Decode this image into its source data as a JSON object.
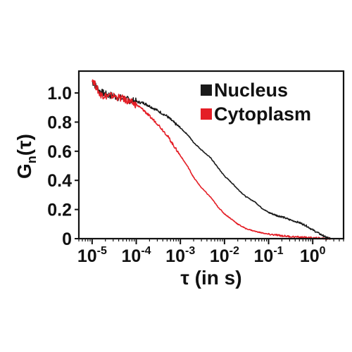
{
  "chart_data": {
    "type": "line",
    "xlabel": "τ (in s)",
    "ylabel": "Gn(τ)",
    "ylabel_main": "G",
    "ylabel_sub": "n",
    "ylabel_arg": "(τ)",
    "x_scale": "log",
    "xlim": [
      5e-06,
      5
    ],
    "ylim": [
      0,
      1.15
    ],
    "x_ticks": [
      {
        "base": "10",
        "exp": "-5",
        "value": 1e-05
      },
      {
        "base": "10",
        "exp": "-4",
        "value": 0.0001
      },
      {
        "base": "10",
        "exp": "-3",
        "value": 0.001
      },
      {
        "base": "10",
        "exp": "-2",
        "value": 0.01
      },
      {
        "base": "10",
        "exp": "-1",
        "value": 0.1
      },
      {
        "base": "10",
        "exp": "0",
        "value": 1
      }
    ],
    "y_ticks": [
      {
        "label": "0",
        "value": 0
      },
      {
        "label": "0.2",
        "value": 0.2
      },
      {
        "label": "0.4",
        "value": 0.4
      },
      {
        "label": "0.6",
        "value": 0.6
      },
      {
        "label": "0.8",
        "value": 0.8
      },
      {
        "label": "1.0",
        "value": 1.0
      }
    ],
    "legend_position": "top-right",
    "grid": false,
    "series": [
      {
        "name": "Nucleus",
        "color": "#1a1a1a",
        "x": [
          1e-05,
          1.5e-05,
          2e-05,
          3e-05,
          5e-05,
          7e-05,
          0.0001,
          0.00015,
          0.0002,
          0.0003,
          0.0005,
          0.0007,
          0.001,
          0.0015,
          0.002,
          0.003,
          0.005,
          0.007,
          0.01,
          0.015,
          0.02,
          0.03,
          0.05,
          0.07,
          0.1,
          0.15,
          0.2,
          0.3,
          0.5,
          0.7,
          1.0,
          1.5,
          2.0,
          2.5
        ],
        "y": [
          1.08,
          1.01,
          0.99,
          0.98,
          0.96,
          0.95,
          0.94,
          0.93,
          0.91,
          0.88,
          0.84,
          0.8,
          0.76,
          0.71,
          0.66,
          0.61,
          0.55,
          0.49,
          0.43,
          0.38,
          0.34,
          0.29,
          0.25,
          0.21,
          0.18,
          0.16,
          0.15,
          0.13,
          0.11,
          0.09,
          0.06,
          0.03,
          0.01,
          0.0
        ]
      },
      {
        "name": "Cytoplasm",
        "color": "#e41e26",
        "x": [
          1e-05,
          1.5e-05,
          2e-05,
          3e-05,
          5e-05,
          7e-05,
          0.0001,
          0.00015,
          0.0002,
          0.0003,
          0.0005,
          0.0007,
          0.001,
          0.0015,
          0.002,
          0.003,
          0.005,
          0.007,
          0.01,
          0.015,
          0.02,
          0.03,
          0.05,
          0.07,
          0.1,
          0.15,
          0.2,
          0.3,
          0.5,
          0.7,
          1.0,
          1.5,
          2.0,
          2.5
        ],
        "y": [
          1.1,
          0.99,
          0.98,
          0.98,
          0.96,
          0.94,
          0.92,
          0.88,
          0.84,
          0.79,
          0.71,
          0.64,
          0.57,
          0.49,
          0.42,
          0.35,
          0.28,
          0.22,
          0.17,
          0.13,
          0.1,
          0.07,
          0.05,
          0.04,
          0.03,
          0.025,
          0.02,
          0.015,
          0.01,
          0.008,
          0.005,
          0.003,
          0.0,
          0.0
        ]
      }
    ]
  }
}
